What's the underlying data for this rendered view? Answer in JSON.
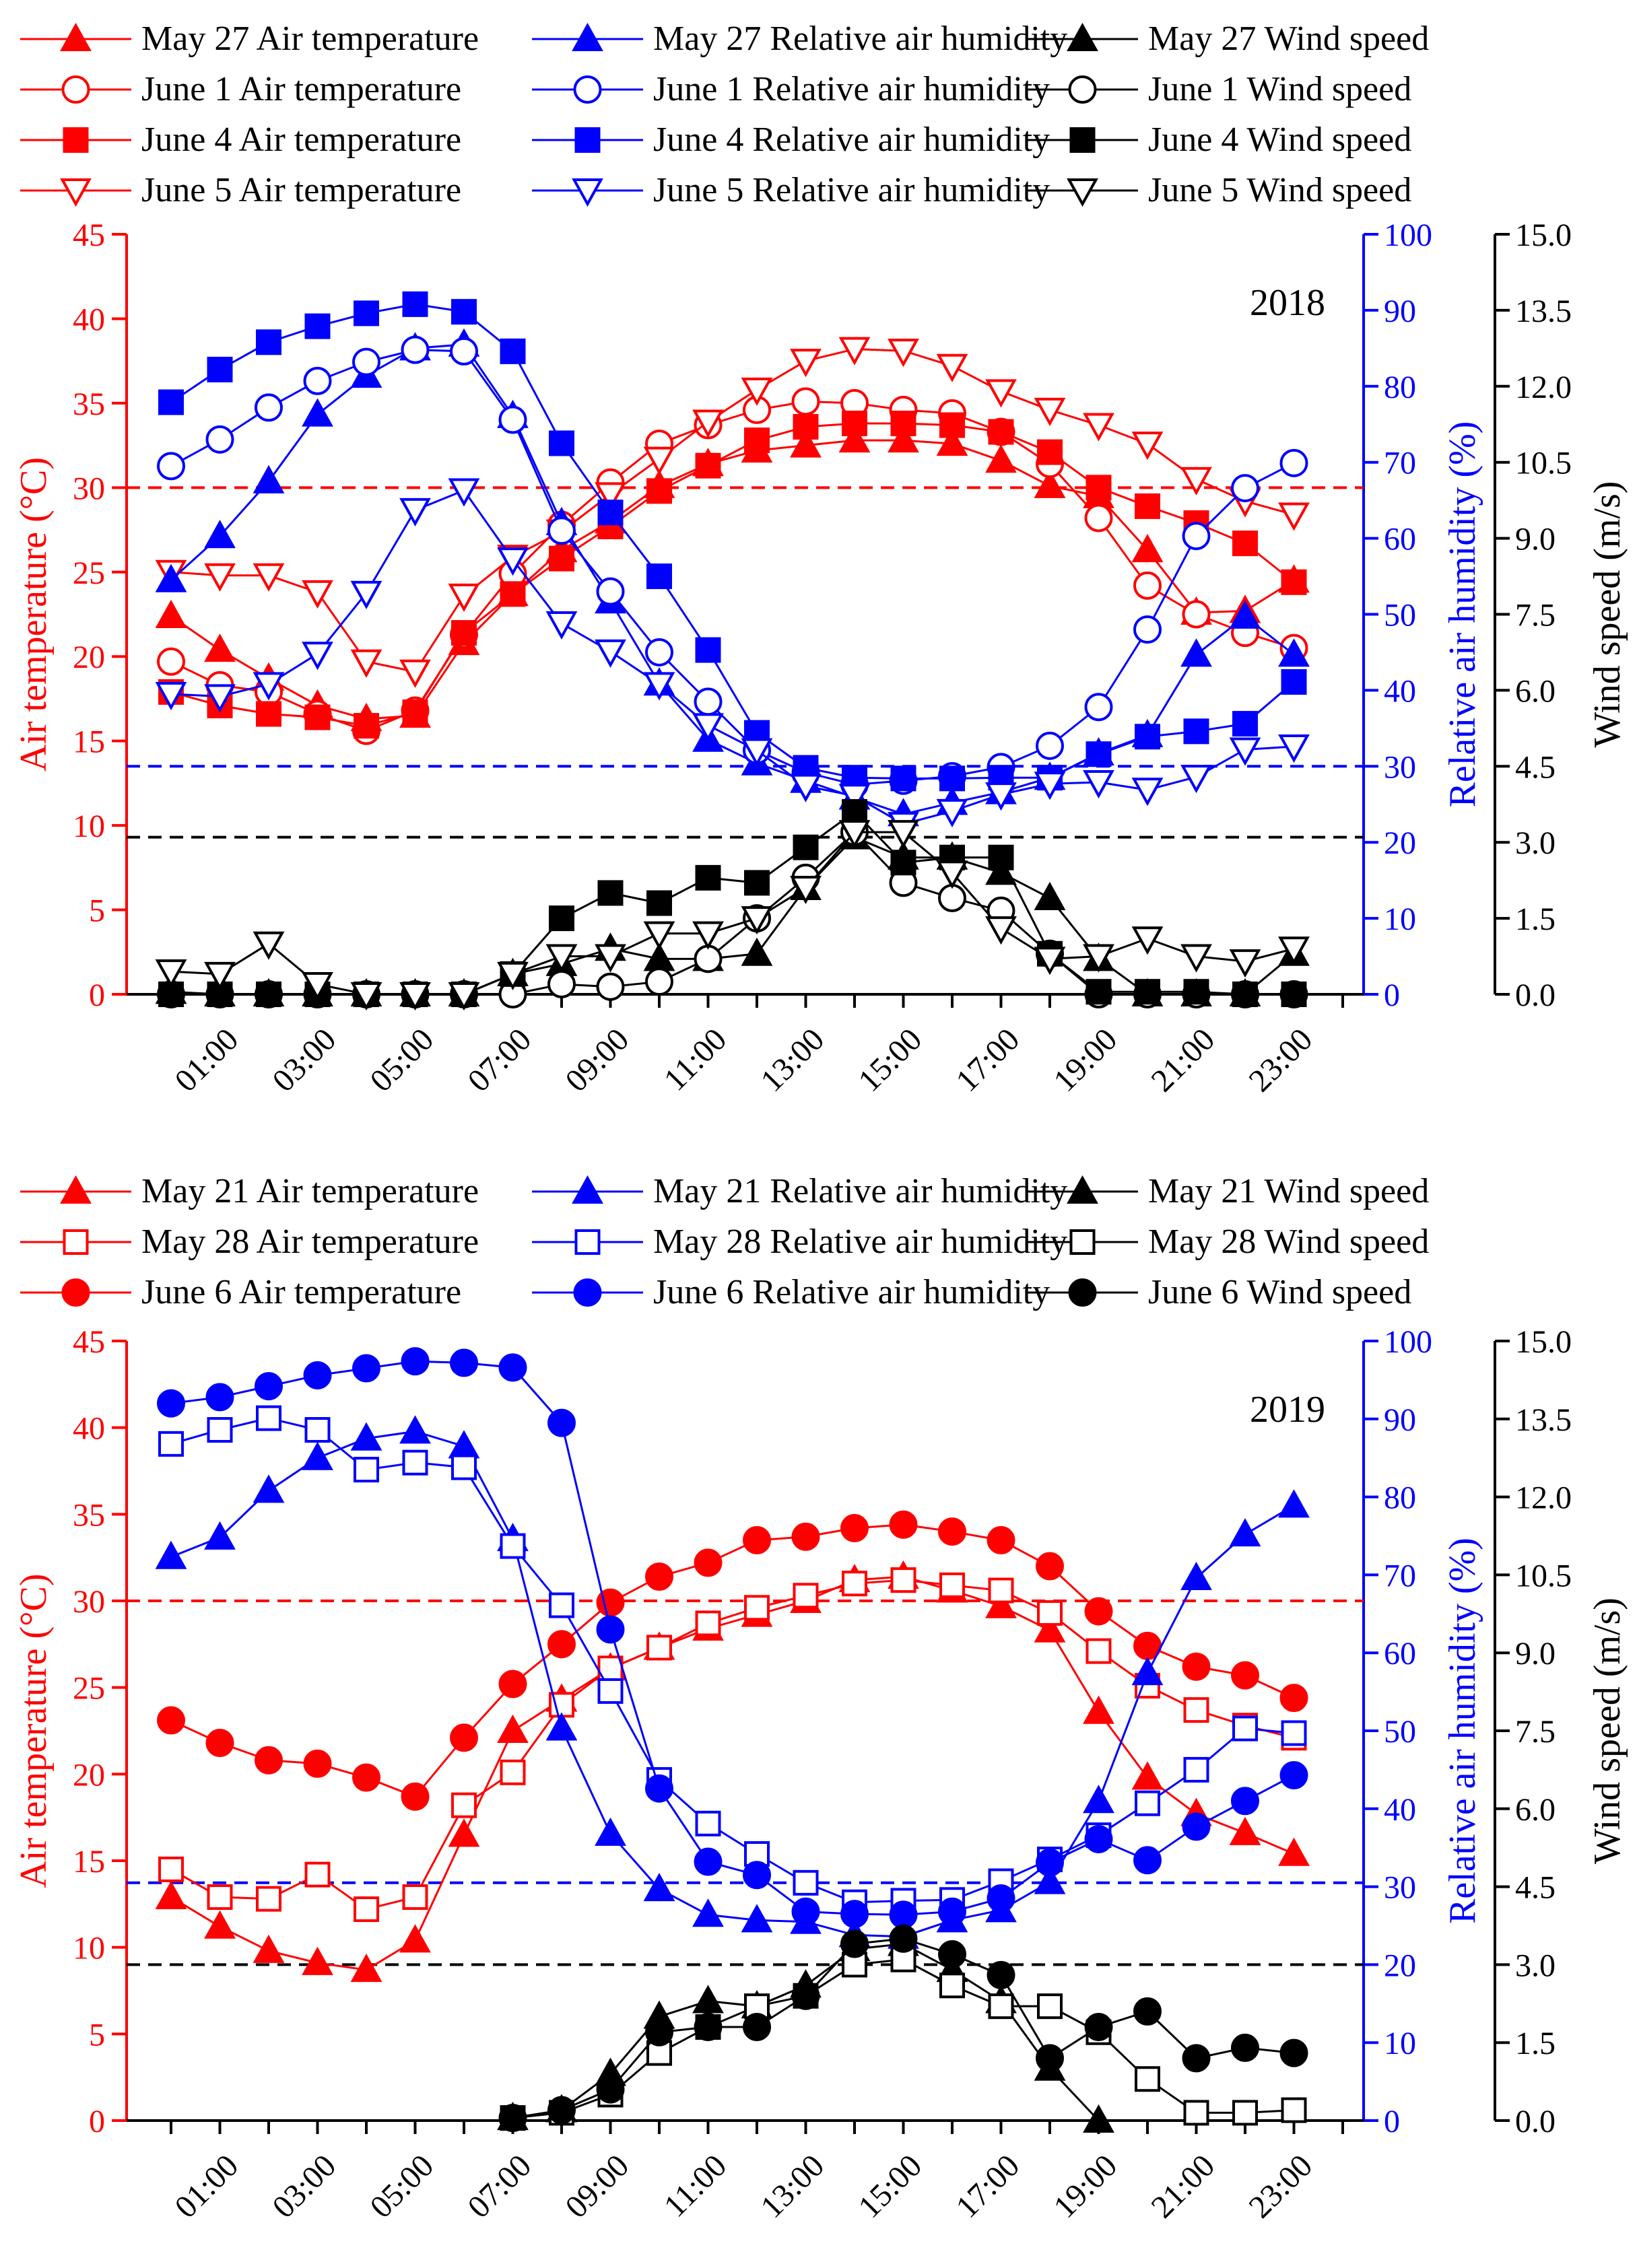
{
  "colors": {
    "temperature": "#ff0000",
    "humidity": "#0000ff",
    "wind": "#000000"
  },
  "chart_data": [
    {
      "type": "line",
      "year_label": "2018",
      "x_tick_labels": [
        "01:00",
        "03:00",
        "05:00",
        "07:00",
        "09:00",
        "11:00",
        "13:00",
        "15:00",
        "17:00",
        "19:00",
        "21:00",
        "23:00"
      ],
      "hours": [
        0,
        1,
        2,
        3,
        4,
        5,
        6,
        7,
        8,
        9,
        10,
        11,
        12,
        13,
        14,
        15,
        16,
        17,
        18,
        19,
        20,
        21,
        22,
        23
      ],
      "axes": {
        "left": {
          "label": "Air temperature (°C)",
          "min": 0,
          "max": 45,
          "ticks": [
            "0",
            "5",
            "10",
            "15",
            "20",
            "25",
            "30",
            "35",
            "40",
            "45"
          ]
        },
        "right1": {
          "label": "Relative air humidity (%)",
          "min": 0,
          "max": 100,
          "ticks": [
            "0",
            "10",
            "20",
            "30",
            "40",
            "50",
            "60",
            "70",
            "80",
            "90",
            "100"
          ]
        },
        "right2": {
          "label": "Wind speed (m/s)",
          "min": 0,
          "max": 15,
          "ticks": [
            "0.0",
            "1.5",
            "3.0",
            "4.5",
            "6.0",
            "7.5",
            "9.0",
            "10.5",
            "12.0",
            "13.5",
            "15.0"
          ]
        }
      },
      "thresholds": [
        {
          "axis": "left",
          "value": 30,
          "color": "#ff0000"
        },
        {
          "axis": "right1",
          "value": 30,
          "color": "#0000ff"
        },
        {
          "axis": "right2",
          "value": 3.1,
          "color": "#000000"
        }
      ],
      "legend": [
        [
          "May 27 Air temperature",
          "May 27 Relative air humidity",
          "May 27 Wind speed"
        ],
        [
          "June 1 Air temperature",
          "June 1 Relative air humidity",
          "June 1 Wind speed"
        ],
        [
          "June 4 Air temperature",
          "June 4 Relative air humidity",
          "June 4 Wind speed"
        ],
        [
          "June 5 Air temperature",
          "June 5 Relative air humidity",
          "June 5 Wind speed"
        ]
      ],
      "series": [
        {
          "name": "May 27 Air temperature",
          "axis": "left",
          "color": "#ff0000",
          "marker": "triangle-up-filled",
          "values": [
            22.4,
            20.4,
            18.7,
            17.1,
            16.3,
            16.5,
            20.8,
            23.7,
            26.3,
            28.0,
            30.1,
            31.4,
            32.2,
            32.5,
            32.8,
            32.8,
            32.6,
            31.6,
            30.1,
            29.5,
            26.3,
            22.6,
            22.7,
            24.5
          ]
        },
        {
          "name": "June 1 Air temperature",
          "axis": "left",
          "color": "#ff0000",
          "marker": "circle-open",
          "values": [
            19.7,
            18.3,
            17.9,
            16.6,
            15.6,
            16.8,
            21.3,
            24.9,
            27.8,
            30.3,
            32.6,
            33.7,
            34.6,
            35.1,
            35.0,
            34.6,
            34.4,
            33.3,
            31.4,
            28.2,
            24.2,
            22.5,
            21.4,
            20.5
          ]
        },
        {
          "name": "June 4 Air temperature",
          "axis": "left",
          "color": "#ff0000",
          "marker": "square-filled",
          "values": [
            17.9,
            17.1,
            16.6,
            16.4,
            15.9,
            16.7,
            21.4,
            23.7,
            25.8,
            27.7,
            29.8,
            31.3,
            32.8,
            33.6,
            33.8,
            33.8,
            33.7,
            33.3,
            32.1,
            30.0,
            28.9,
            27.9,
            26.7,
            24.4
          ]
        },
        {
          "name": "June 5 Air temperature",
          "axis": "left",
          "color": "#ff0000",
          "marker": "triangle-down-open",
          "values": [
            25.0,
            24.8,
            24.8,
            23.8,
            19.7,
            19.1,
            23.6,
            25.9,
            27.4,
            29.6,
            31.7,
            33.9,
            35.8,
            37.5,
            38.2,
            38.1,
            37.2,
            35.7,
            34.6,
            33.7,
            32.6,
            30.5,
            29.2,
            28.4
          ]
        },
        {
          "name": "May 27 Relative air humidity",
          "axis": "right1",
          "color": "#0000ff",
          "marker": "triangle-up-filled",
          "values": [
            54.5,
            60.3,
            67.5,
            76.3,
            81.4,
            85.0,
            85.5,
            76.1,
            62.0,
            51.7,
            40.9,
            33.5,
            30.4,
            28.1,
            25.9,
            23.7,
            25.2,
            26.6,
            28.5,
            31.7,
            34.1,
            44.7,
            49.7,
            44.7
          ]
        },
        {
          "name": "June 1 Relative air humidity",
          "axis": "right1",
          "color": "#0000ff",
          "marker": "circle-open",
          "values": [
            69.5,
            73.0,
            77.2,
            80.7,
            83.2,
            84.8,
            84.6,
            75.6,
            61.0,
            53.0,
            45.0,
            38.5,
            32.1,
            29.2,
            27.6,
            28.1,
            28.7,
            29.9,
            32.7,
            37.8,
            48.0,
            60.3,
            66.6,
            69.9
          ]
        },
        {
          "name": "June 4 Relative air humidity",
          "axis": "right1",
          "color": "#0000ff",
          "marker": "square-filled",
          "values": [
            77.9,
            82.2,
            85.8,
            87.9,
            89.6,
            90.8,
            89.8,
            84.6,
            72.5,
            63.4,
            55.0,
            45.3,
            34.4,
            29.8,
            28.5,
            28.4,
            28.4,
            28.5,
            28.5,
            31.6,
            33.9,
            34.6,
            35.6,
            41.1
          ]
        },
        {
          "name": "June 5 Relative air humidity",
          "axis": "right1",
          "color": "#0000ff",
          "marker": "triangle-down-open",
          "values": [
            39.5,
            39.2,
            40.8,
            44.8,
            52.8,
            63.7,
            66.3,
            57.2,
            48.8,
            45.1,
            40.8,
            35.4,
            32.1,
            27.4,
            26.1,
            22.4,
            24.1,
            26.3,
            27.7,
            27.9,
            26.9,
            28.6,
            32.2,
            32.6
          ]
        },
        {
          "name": "May 27 Wind speed",
          "axis": "right2",
          "color": "#000000",
          "marker": "triangle-up-filled",
          "values": [
            0.05,
            0.0,
            0.0,
            0.0,
            0.0,
            0.0,
            0.0,
            0.4,
            0.6,
            0.9,
            0.7,
            0.7,
            0.8,
            2.1,
            3.1,
            2.7,
            2.7,
            2.4,
            1.9,
            0.7,
            0.0,
            0.0,
            0.0,
            0.8
          ]
        },
        {
          "name": "June 1 Wind speed",
          "axis": "right2",
          "color": "#000000",
          "marker": "circle-open",
          "values": [
            0.0,
            0.0,
            0.0,
            0.0,
            0.0,
            0.0,
            0.0,
            0.0,
            0.2,
            0.15,
            0.25,
            0.7,
            1.5,
            2.3,
            3.2,
            2.2,
            1.9,
            1.65,
            0.8,
            0.0,
            0.0,
            0.0,
            0.0,
            0.0
          ]
        },
        {
          "name": "June 4 Wind speed",
          "axis": "right2",
          "color": "#000000",
          "marker": "square-filled",
          "values": [
            0.0,
            0.0,
            0.0,
            0.0,
            0.0,
            0.0,
            0.0,
            0.4,
            1.5,
            2.0,
            1.8,
            2.3,
            2.2,
            2.9,
            3.6,
            2.6,
            2.7,
            2.7,
            0.8,
            0.05,
            0.05,
            0.05,
            0.0,
            0.0
          ]
        },
        {
          "name": "June 5 Wind speed",
          "axis": "right2",
          "color": "#000000",
          "marker": "triangle-down-open",
          "values": [
            0.45,
            0.4,
            1.0,
            0.2,
            0.0,
            0.0,
            0.0,
            0.4,
            0.75,
            0.75,
            1.2,
            1.2,
            1.5,
            2.1,
            3.2,
            3.2,
            2.4,
            1.3,
            0.7,
            0.75,
            1.1,
            0.75,
            0.65,
            0.9
          ]
        }
      ]
    },
    {
      "type": "line",
      "year_label": "2019",
      "x_tick_labels": [
        "01:00",
        "03:00",
        "05:00",
        "07:00",
        "09:00",
        "11:00",
        "13:00",
        "15:00",
        "17:00",
        "19:00",
        "21:00",
        "23:00"
      ],
      "hours": [
        0,
        1,
        2,
        3,
        4,
        5,
        6,
        7,
        8,
        9,
        10,
        11,
        12,
        13,
        14,
        15,
        16,
        17,
        18,
        19,
        20,
        21,
        22,
        23
      ],
      "axes": {
        "left": {
          "label": "Air temperature (°C)",
          "min": 0,
          "max": 45,
          "ticks": [
            "0",
            "5",
            "10",
            "15",
            "20",
            "25",
            "30",
            "35",
            "40",
            "45"
          ]
        },
        "right1": {
          "label": "Relative air humidity (%)",
          "min": 0,
          "max": 100,
          "ticks": [
            "0",
            "10",
            "20",
            "30",
            "40",
            "50",
            "60",
            "70",
            "80",
            "90",
            "100"
          ]
        },
        "right2": {
          "label": "Wind speed (m/s)",
          "min": 0,
          "max": 15,
          "ticks": [
            "0.0",
            "1.5",
            "3.0",
            "4.5",
            "6.0",
            "7.5",
            "9.0",
            "10.5",
            "12.0",
            "13.5",
            "15.0"
          ]
        }
      },
      "thresholds": [
        {
          "axis": "left",
          "value": 30,
          "color": "#ff0000"
        },
        {
          "axis": "right1",
          "value": 30.5,
          "color": "#0000ff"
        },
        {
          "axis": "right2",
          "value": 3.0,
          "color": "#000000"
        }
      ],
      "legend": [
        [
          "May 21 Air temperature",
          "May 21 Relative air humidity",
          "May 21 Wind speed"
        ],
        [
          "May 28 Air temperature",
          "May 28 Relative air humidity",
          "May 28 Wind speed"
        ],
        [
          "June 6 Air temperature",
          "June 6 Relative air humidity",
          "June 6 Wind speed"
        ]
      ],
      "series": [
        {
          "name": "May 21 Air temperature",
          "axis": "left",
          "color": "#ff0000",
          "marker": "triangle-up-filled",
          "values": [
            12.9,
            11.2,
            9.8,
            9.1,
            8.7,
            10.4,
            16.5,
            22.5,
            24.3,
            26.1,
            27.3,
            28.4,
            29.2,
            30.0,
            31.2,
            31.4,
            30.6,
            29.7,
            28.3,
            23.6,
            19.8,
            17.7,
            16.6,
            15.4
          ]
        },
        {
          "name": "May 28 Air temperature",
          "axis": "left",
          "color": "#ff0000",
          "marker": "square-open",
          "values": [
            14.5,
            12.9,
            12.8,
            14.2,
            12.2,
            12.9,
            18.2,
            20.1,
            24.0,
            26.1,
            27.3,
            28.7,
            29.6,
            30.3,
            31.0,
            31.2,
            30.9,
            30.6,
            29.3,
            27.1,
            25.1,
            23.7,
            22.8,
            22.1
          ]
        },
        {
          "name": "June 6 Air temperature",
          "axis": "left",
          "color": "#ff0000",
          "marker": "circle-filled",
          "values": [
            23.1,
            21.8,
            20.8,
            20.6,
            19.8,
            18.7,
            22.1,
            25.2,
            27.5,
            29.9,
            31.4,
            32.2,
            33.5,
            33.7,
            34.2,
            34.4,
            34.0,
            33.5,
            32.0,
            29.4,
            27.4,
            26.2,
            25.7,
            24.4
          ]
        },
        {
          "name": "May 21 Relative air humidity",
          "axis": "right1",
          "color": "#0000ff",
          "marker": "triangle-up-filled",
          "values": [
            72.3,
            74.8,
            80.8,
            85.0,
            87.5,
            88.4,
            86.5,
            74.6,
            50.3,
            36.8,
            29.7,
            26.4,
            25.7,
            25.5,
            23.8,
            23.6,
            25.7,
            27.0,
            30.6,
            41.0,
            57.4,
            69.6,
            75.2,
            78.9
          ]
        },
        {
          "name": "May 28 Relative air humidity",
          "axis": "right1",
          "color": "#0000ff",
          "marker": "square-open",
          "values": [
            86.8,
            88.6,
            90.1,
            88.6,
            83.5,
            84.4,
            83.8,
            73.7,
            66.1,
            55.1,
            43.7,
            38.1,
            34.2,
            30.5,
            28.0,
            28.2,
            28.3,
            30.7,
            33.5,
            36.6,
            40.7,
            45.0,
            50.3,
            49.7
          ]
        },
        {
          "name": "June 6 Relative air humidity",
          "axis": "right1",
          "color": "#0000ff",
          "marker": "circle-filled",
          "values": [
            92.0,
            92.8,
            94.2,
            95.6,
            96.5,
            97.4,
            97.2,
            96.6,
            89.5,
            63.0,
            42.6,
            33.2,
            31.5,
            26.8,
            26.5,
            26.4,
            26.8,
            28.5,
            33.1,
            36.1,
            33.4,
            37.7,
            41.0,
            44.3
          ]
        },
        {
          "name": "May 21 Wind speed",
          "axis": "right2",
          "color": "#000000",
          "marker": "triangle-up-filled",
          "values": [
            null,
            null,
            null,
            null,
            null,
            null,
            null,
            0.05,
            0.2,
            0.9,
            2.0,
            2.3,
            2.2,
            2.6,
            3.3,
            3.4,
            2.9,
            2.3,
            1.0,
            0.0,
            null,
            null,
            null,
            null
          ]
        },
        {
          "name": "May 28 Wind speed",
          "axis": "right2",
          "color": "#000000",
          "marker": "square-open",
          "values": [
            null,
            null,
            null,
            null,
            null,
            null,
            null,
            0.05,
            0.15,
            0.5,
            1.3,
            1.8,
            2.2,
            2.4,
            3.0,
            3.1,
            2.6,
            2.2,
            2.2,
            1.7,
            0.8,
            0.15,
            0.15,
            0.2
          ]
        },
        {
          "name": "June 6 Wind speed",
          "axis": "right2",
          "color": "#000000",
          "marker": "circle-filled",
          "values": [
            null,
            null,
            null,
            null,
            null,
            null,
            null,
            0.05,
            0.2,
            0.6,
            1.7,
            1.8,
            1.8,
            2.4,
            3.4,
            3.5,
            3.2,
            2.8,
            1.2,
            1.8,
            2.1,
            1.2,
            1.4,
            1.3
          ]
        }
      ]
    }
  ]
}
